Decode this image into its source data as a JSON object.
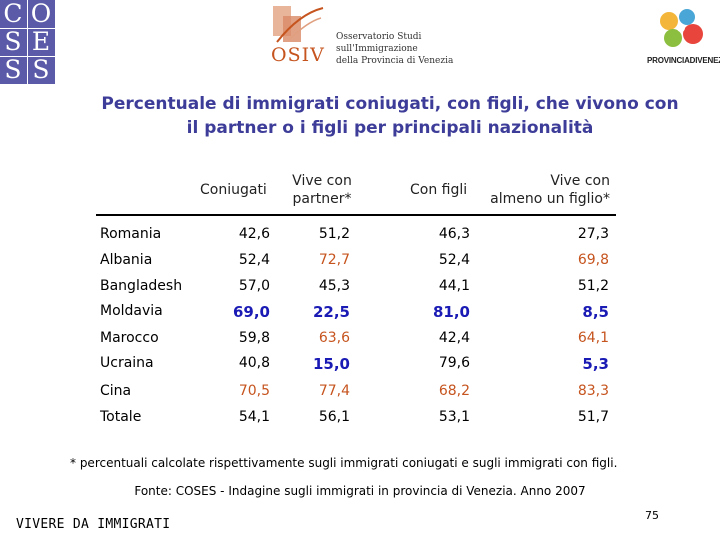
{
  "logos": {
    "coses_letters": [
      "C",
      "O",
      "S",
      "E",
      "S",
      "S"
    ],
    "osiv": {
      "acronym": "OSIV",
      "lines": [
        "Osservatorio Studi",
        "sull'Immigrazione",
        "della Provincia di Venezia"
      ]
    },
    "provincia": "PROVINCIADIVENEZIA"
  },
  "title": {
    "line1": "Percentuale di immigrati coniugati, con figli, che vivono con",
    "line2": "il partner o i figli per principali nazionalità"
  },
  "table": {
    "headers": {
      "coniugati": "Coniugati",
      "partner_1": "Vive con",
      "partner_2": "partner*",
      "figli": "Con figli",
      "figlio_1": "Vive con",
      "figlio_2": "almeno un figlio*"
    },
    "rows": [
      {
        "label": "Romania",
        "v1": "42,6",
        "v2": "51,2",
        "v3": "46,3",
        "v4": "27,3"
      },
      {
        "label": "Albania",
        "v1": "52,4",
        "v2": "72,7",
        "v3": "52,4",
        "v4": "69,8"
      },
      {
        "label": "Bangladesh",
        "v1": "57,0",
        "v2": "45,3",
        "v3": "44,1",
        "v4": "51,2"
      },
      {
        "label": "Moldavia",
        "v1": "69,0",
        "v2": "22,5",
        "v3": "81,0",
        "v4": "8,5"
      },
      {
        "label": "Marocco",
        "v1": "59,8",
        "v2": "63,6",
        "v3": "42,4",
        "v4": "64,1"
      },
      {
        "label": "Ucraina",
        "v1": "40,8",
        "v2": "15,0",
        "v3": "79,6",
        "v4": "5,3"
      },
      {
        "label": "Cina",
        "v1": "70,5",
        "v2": "77,4",
        "v3": "68,2",
        "v4": "83,3"
      },
      {
        "label": "Totale",
        "v1": "54,1",
        "v2": "56,1",
        "v3": "53,1",
        "v4": "51,7"
      }
    ]
  },
  "footnote": "* percentuali calcolate rispettivamente sugli immigrati coniugati e sugli immigrati con figli.",
  "source": "Fonte: COSES - Indagine sugli immigrati in provincia di Venezia. Anno 2007",
  "footer_left": "VIVERE DA IMMIGRATI",
  "page_number": "75"
}
